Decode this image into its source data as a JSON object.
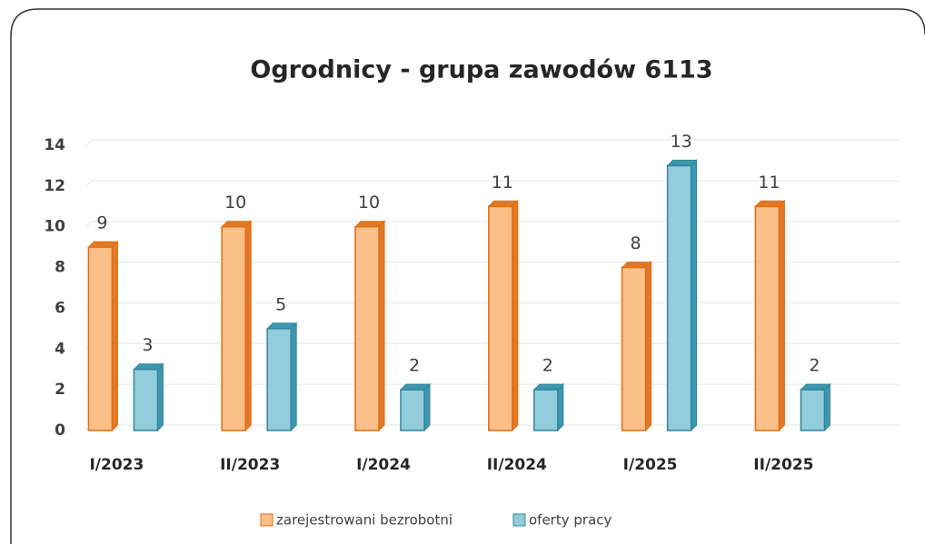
{
  "chart_data": {
    "type": "bar",
    "title": "Ogrodnicy - grupa zawodów 6113",
    "categories": [
      "I/2023",
      "II/2023",
      "I/2024",
      "II/2024",
      "I/2025",
      "II/2025"
    ],
    "series": [
      {
        "name": "zarejestrowani bezrobotni",
        "color": "#fbbf8a",
        "values": [
          9,
          10,
          10,
          11,
          8,
          11
        ]
      },
      {
        "name": "oferty pracy",
        "color": "#92cddc",
        "values": [
          3,
          5,
          2,
          2,
          13,
          2
        ]
      }
    ],
    "ylim": [
      0,
      14
    ],
    "yticks": [
      0,
      2,
      4,
      6,
      8,
      10,
      12,
      14
    ],
    "grid": true
  }
}
